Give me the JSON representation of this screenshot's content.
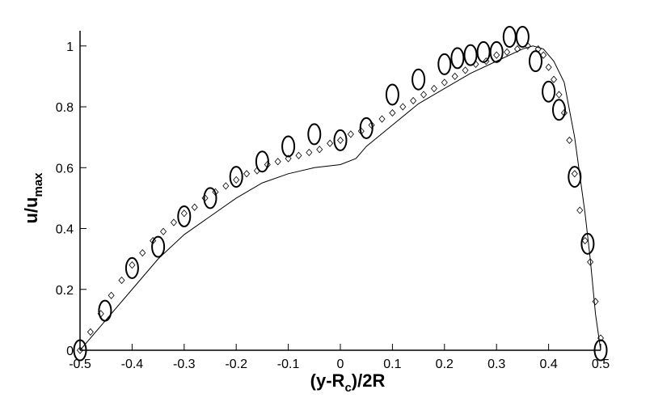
{
  "chart_data": {
    "type": "line",
    "xlabel": [
      "(y-R",
      "c",
      ")/2R"
    ],
    "ylabel": [
      "u/u",
      "max"
    ],
    "xlim": [
      -0.5,
      0.5
    ],
    "ylim": [
      0,
      1.05
    ],
    "xticks": [
      -0.5,
      -0.4,
      -0.3,
      -0.2,
      -0.1,
      0,
      0.1,
      0.2,
      0.3,
      0.4,
      0.5
    ],
    "yticks": [
      0,
      0.2,
      0.4,
      0.6,
      0.8,
      1
    ],
    "series": [
      {
        "marker": "none",
        "color": "#000000",
        "x": [
          -0.5,
          -0.45,
          -0.4,
          -0.35,
          -0.3,
          -0.25,
          -0.2,
          -0.15,
          -0.1,
          -0.05,
          0,
          0.03,
          0.05,
          0.1,
          0.15,
          0.2,
          0.25,
          0.3,
          0.35,
          0.37,
          0.39,
          0.41,
          0.43,
          0.45,
          0.47,
          0.48,
          0.49,
          0.5
        ],
        "values": [
          0,
          0.1,
          0.2,
          0.3,
          0.38,
          0.44,
          0.5,
          0.55,
          0.58,
          0.6,
          0.61,
          0.63,
          0.67,
          0.74,
          0.81,
          0.86,
          0.91,
          0.95,
          0.99,
          1.0,
          0.99,
          0.95,
          0.88,
          0.7,
          0.45,
          0.3,
          0.12,
          0
        ]
      },
      {
        "marker": "diamond",
        "color": "#000000",
        "x": [
          -0.5,
          -0.48,
          -0.46,
          -0.44,
          -0.42,
          -0.4,
          -0.38,
          -0.36,
          -0.34,
          -0.32,
          -0.3,
          -0.28,
          -0.26,
          -0.24,
          -0.22,
          -0.2,
          -0.18,
          -0.16,
          -0.14,
          -0.12,
          -0.1,
          -0.08,
          -0.06,
          -0.04,
          -0.02,
          0,
          0.02,
          0.04,
          0.06,
          0.08,
          0.1,
          0.12,
          0.14,
          0.16,
          0.18,
          0.2,
          0.22,
          0.24,
          0.26,
          0.28,
          0.3,
          0.32,
          0.34,
          0.36,
          0.38,
          0.39,
          0.4,
          0.41,
          0.42,
          0.43,
          0.44,
          0.45,
          0.46,
          0.47,
          0.48,
          0.49,
          0.5
        ],
        "values": [
          0,
          0.06,
          0.12,
          0.18,
          0.23,
          0.28,
          0.32,
          0.36,
          0.39,
          0.42,
          0.45,
          0.47,
          0.5,
          0.52,
          0.54,
          0.56,
          0.58,
          0.59,
          0.61,
          0.62,
          0.63,
          0.64,
          0.65,
          0.66,
          0.68,
          0.69,
          0.71,
          0.72,
          0.74,
          0.76,
          0.78,
          0.8,
          0.82,
          0.84,
          0.86,
          0.88,
          0.9,
          0.92,
          0.94,
          0.95,
          0.97,
          0.98,
          0.99,
          1.0,
          0.99,
          0.97,
          0.93,
          0.89,
          0.84,
          0.78,
          0.69,
          0.58,
          0.46,
          0.36,
          0.29,
          0.16,
          0.04
        ]
      },
      {
        "marker": "circle",
        "color": "#000000",
        "x": [
          -0.5,
          -0.452,
          -0.4,
          -0.35,
          -0.3,
          -0.25,
          -0.2,
          -0.15,
          -0.1,
          -0.05,
          0,
          0.05,
          0.1,
          0.15,
          0.2,
          0.225,
          0.25,
          0.275,
          0.3,
          0.325,
          0.35,
          0.375,
          0.4,
          0.42,
          0.45,
          0.475,
          0.5
        ],
        "values": [
          0,
          0.13,
          0.27,
          0.34,
          0.44,
          0.5,
          0.57,
          0.62,
          0.67,
          0.71,
          0.69,
          0.73,
          0.84,
          0.89,
          0.94,
          0.96,
          0.97,
          0.98,
          0.98,
          1.03,
          1.03,
          0.95,
          0.85,
          0.79,
          0.57,
          0.35,
          0
        ]
      }
    ]
  }
}
